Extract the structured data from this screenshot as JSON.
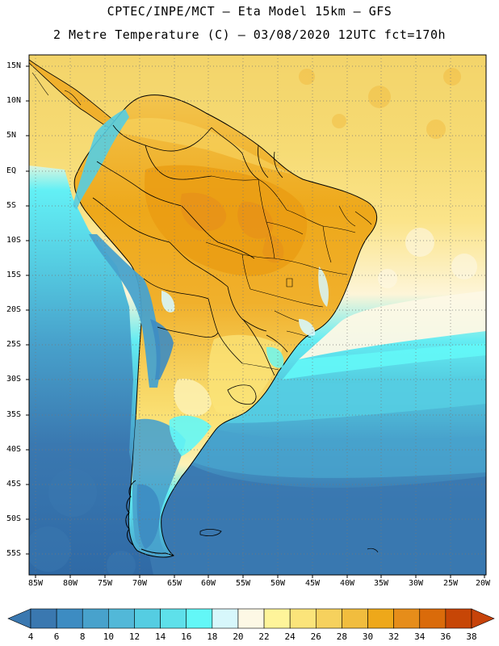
{
  "header": {
    "title_line1": "CPTEC/INPE/MCT –  Eta Model 15km – GFS",
    "title_line2": "2 Metre Temperature (C) – 03/08/2020 12UTC fct=170h"
  },
  "map": {
    "latitude_labels": [
      "15N",
      "10N",
      "5N",
      "EQ",
      "5S",
      "10S",
      "15S",
      "20S",
      "25S",
      "30S",
      "35S",
      "40S",
      "45S",
      "50S",
      "55S"
    ],
    "longitude_labels": [
      "85W",
      "80W",
      "75W",
      "70W",
      "65W",
      "60W",
      "55W",
      "50W",
      "45W",
      "40W",
      "35W",
      "30W",
      "25W",
      "20W"
    ]
  },
  "colorbar": {
    "labels": [
      "4",
      "6",
      "8",
      "10",
      "12",
      "14",
      "16",
      "18",
      "20",
      "22",
      "24",
      "26",
      "28",
      "30",
      "32",
      "34",
      "36",
      "38"
    ],
    "colors": {
      "below": "#3a78b0",
      "bins": [
        "#3a78b0",
        "#3d8cc2",
        "#48a2cc",
        "#52b8d8",
        "#55cde2",
        "#5ee0ea",
        "#63f7f7",
        "#d7f7fb",
        "#fdf8e5",
        "#fef49a",
        "#fbe47a",
        "#f6d15d",
        "#f1bd3e",
        "#eea81a",
        "#e68d1a",
        "#da6b0a",
        "#c74606"
      ],
      "above": "#c7430a"
    }
  },
  "legend_colors": {
    "ocean_cold": "#2e68a4",
    "ocean_mid": "#3d8cc2",
    "ocean_cyan": "#52d3e3",
    "ocean_warm": "#f3cf55",
    "land_hot": "#eea81a",
    "land_warm": "#f6cd5a",
    "andes": "#48a2cc"
  }
}
